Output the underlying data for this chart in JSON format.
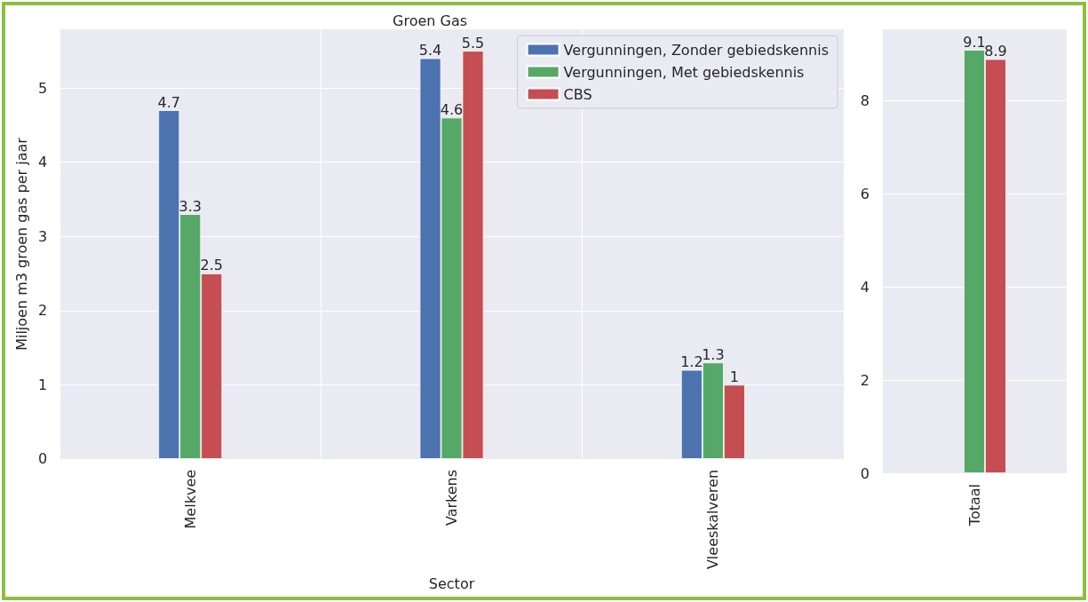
{
  "chart_data": [
    {
      "type": "bar",
      "title": "Groen Gas",
      "xlabel": "Sector",
      "ylabel": "Miljoen m3 groen gas per jaar",
      "categories": [
        "Melkvee",
        "Varkens",
        "Vleeskalveren"
      ],
      "series": [
        {
          "name": "Vergunningen, Zonder gebiedskennis",
          "color": "#4c72b0",
          "values": [
            4.7,
            5.4,
            1.2
          ]
        },
        {
          "name": "Vergunningen, Met gebiedskennis",
          "color": "#55a868",
          "values": [
            3.3,
            4.6,
            1.3
          ]
        },
        {
          "name": "CBS",
          "color": "#c44e52",
          "values": [
            2.5,
            5.5,
            1
          ]
        }
      ],
      "ylim": [
        0,
        5.79
      ],
      "yticks": [
        0,
        1,
        2,
        3,
        4,
        5
      ],
      "grid": true,
      "legend": "top right",
      "data_labels": true
    },
    {
      "type": "bar",
      "categories": [
        "Totaal"
      ],
      "series": [
        {
          "color": "#4c72b0",
          "values": [
            null
          ]
        },
        {
          "color": "#55a868",
          "values": [
            9.1
          ]
        },
        {
          "color": "#c44e52",
          "values": [
            8.9
          ]
        }
      ],
      "ylim": [
        0,
        9.54
      ],
      "yticks": [
        0,
        2,
        4,
        6,
        8
      ],
      "grid": true,
      "data_labels": true
    }
  ]
}
